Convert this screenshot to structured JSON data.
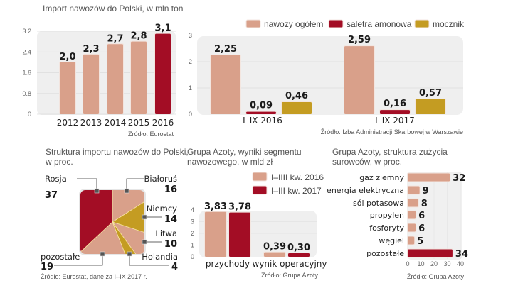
{
  "colors": {
    "salmon": "#d9a08a",
    "crimson": "#a30d25",
    "gold": "#c49c22",
    "panel_bg": "#efefef",
    "grid": "#dddddd"
  },
  "chart_data": [
    {
      "id": "imports",
      "type": "bar",
      "title": "Import nawozów do Polski, w mln ton",
      "categories": [
        "2012",
        "2013",
        "2014",
        "2015",
        "2016"
      ],
      "values": [
        2.0,
        2.3,
        2.7,
        2.8,
        3.1
      ],
      "value_labels": [
        "2,0",
        "2,3",
        "2,7",
        "2,8",
        "3,1"
      ],
      "highlight_index": 4,
      "yticks": [
        "0",
        "0.8",
        "1.6",
        "2.4",
        "3.2"
      ],
      "ytick_values": [
        0,
        0.8,
        1.6,
        2.4,
        3.2
      ],
      "ylim": [
        0,
        3.2
      ],
      "source": "Źródło: Eurostat",
      "grid": true
    },
    {
      "id": "imports_by_type",
      "type": "bar",
      "title": "",
      "legend": [
        "nawozy ogółem",
        "saletra amonowa",
        "mocznik"
      ],
      "legend_position": "top",
      "categories": [
        "I–IX 2016",
        "I–IX 2017"
      ],
      "series": [
        {
          "name": "nawozy ogółem",
          "values": [
            2.25,
            2.59
          ],
          "labels": [
            "2,25",
            "2,59"
          ],
          "color": "salmon"
        },
        {
          "name": "saletra amonowa",
          "values": [
            0.09,
            0.16
          ],
          "labels": [
            "0,09",
            "0,16"
          ],
          "color": "crimson"
        },
        {
          "name": "mocznik",
          "values": [
            0.46,
            0.57
          ],
          "labels": [
            "0,46",
            "0,57"
          ],
          "color": "gold"
        }
      ],
      "yticks": [
        "0",
        "1",
        "2",
        "3"
      ],
      "ytick_values": [
        0,
        1,
        2,
        3
      ],
      "ylim": [
        0,
        3
      ],
      "source": "Źródło: Izba Administracji Skarbowej w Warszawie",
      "grid": true
    },
    {
      "id": "import_structure",
      "type": "pie",
      "title": "Struktura importu nawozów do Polski,",
      "title_line2": "w proc.",
      "slices": [
        {
          "label": "Rosja",
          "value": 37,
          "color": "crimson"
        },
        {
          "label": "Białoruś",
          "value": 16,
          "color": "salmon"
        },
        {
          "label": "Niemcy",
          "value": 14,
          "color": "gold"
        },
        {
          "label": "Litwa",
          "value": 10,
          "color": "salmon"
        },
        {
          "label": "Holandia",
          "value": 4,
          "color": "gold"
        },
        {
          "label": "pozostałe",
          "value": 19,
          "color": "salmon"
        }
      ],
      "source": "Źródło: Eurostat, dane za I–IX 2017 r."
    },
    {
      "id": "azoty_segment",
      "type": "bar",
      "title": "Grupa Azoty, wyniki segmentu",
      "title_line2": "nawozowego, w mld zł",
      "legend": [
        "I–IIII kw. 2016",
        "I–III kw. 2017"
      ],
      "legend_position": "top-right",
      "categories": [
        "przychody",
        "wynik operacyjny"
      ],
      "series": [
        {
          "name": "I–IIII kw. 2016",
          "values": [
            3.83,
            0.39
          ],
          "labels": [
            "3,83",
            "0,39"
          ],
          "color": "salmon"
        },
        {
          "name": "I–III kw. 2017",
          "values": [
            3.78,
            0.3
          ],
          "labels": [
            "3,78",
            "0,30"
          ],
          "color": "crimson"
        }
      ],
      "yticks": [
        "0",
        "1",
        "2",
        "3",
        "4"
      ],
      "ytick_values": [
        0,
        1,
        2,
        3,
        4
      ],
      "ylim": [
        0,
        4
      ],
      "source": "Źródło: Grupa Azoty",
      "grid": true
    },
    {
      "id": "azoty_raw_materials",
      "type": "bar",
      "orientation": "horizontal",
      "title": "Grupa Azoty, struktura zużycia",
      "title_line2": "surowców, w proc.",
      "categories": [
        "gaz ziemny",
        "energia elektryczna",
        "sól potasowa",
        "propylen",
        "fosforyty",
        "węgiel",
        "pozostałe"
      ],
      "values": [
        32,
        9,
        8,
        6,
        6,
        5,
        34
      ],
      "value_labels": [
        "32",
        "9",
        "8",
        "6",
        "6",
        "5",
        "34"
      ],
      "highlight_index": 6,
      "xticks": [
        "0",
        "10",
        "20",
        "30",
        "40"
      ],
      "xtick_values": [
        0,
        10,
        20,
        30,
        40
      ],
      "xlim": [
        0,
        40
      ],
      "source": "Źródło: Grupa Azoty"
    }
  ]
}
